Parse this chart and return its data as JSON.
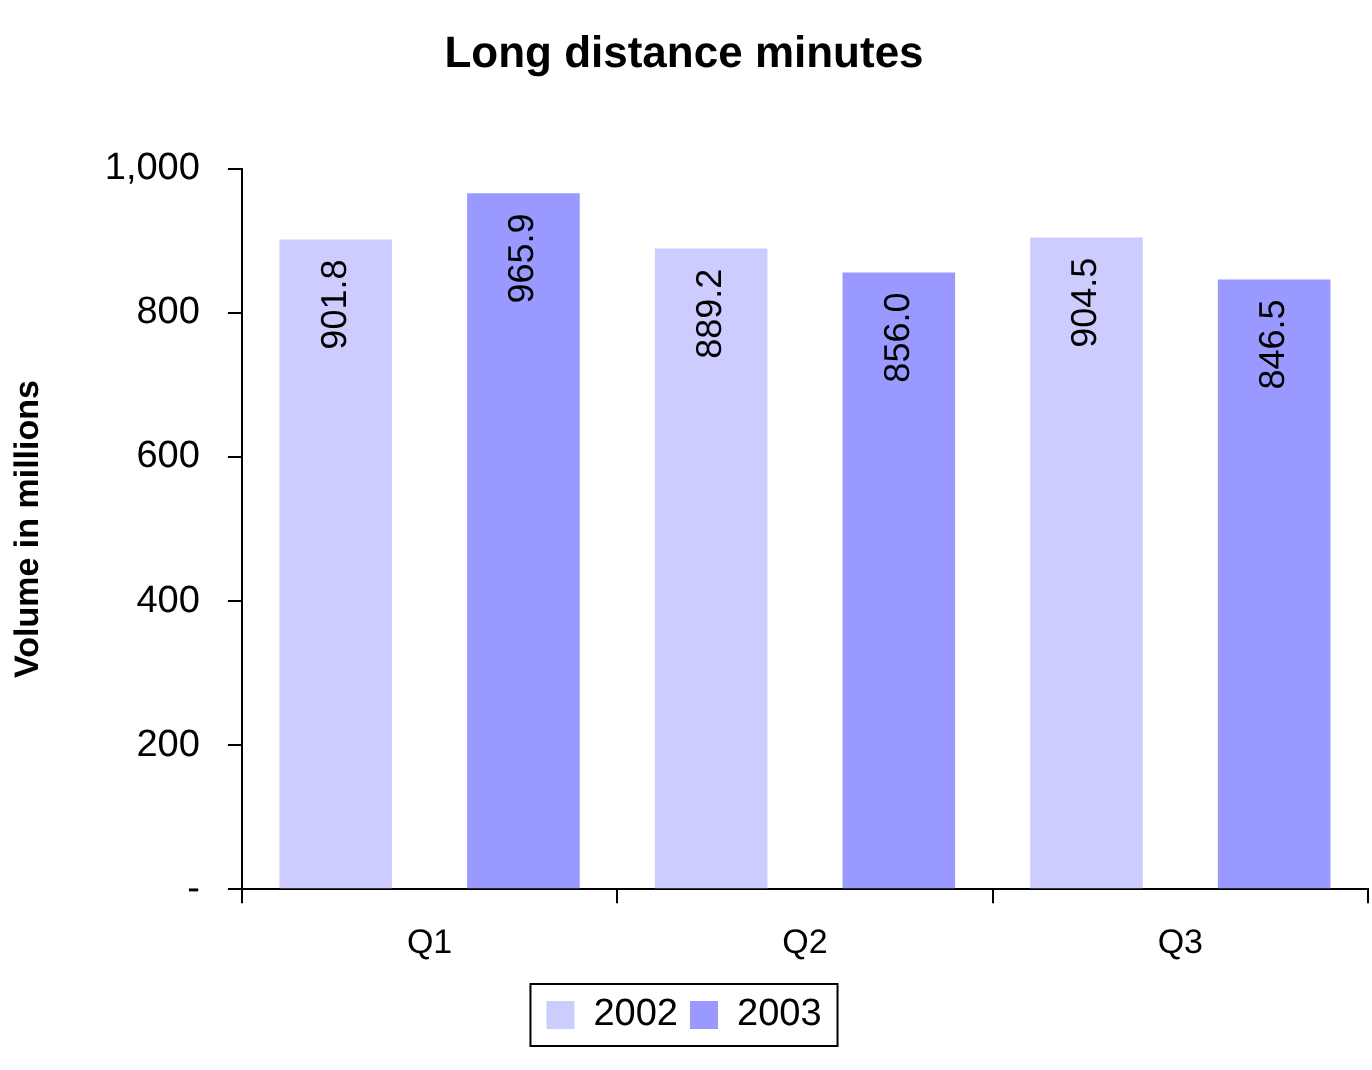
{
  "chart_data": {
    "type": "bar",
    "title": "Long distance minutes",
    "ylabel": "Volume in millions",
    "categories": [
      "Q1",
      "Q2",
      "Q3"
    ],
    "series": [
      {
        "name": "2002",
        "color": "#ccccff",
        "values": [
          901.8,
          889.2,
          904.5
        ],
        "value_labels": [
          "901.8",
          "889.2",
          "904.5"
        ]
      },
      {
        "name": "2003",
        "color": "#9999ff",
        "values": [
          965.9,
          856.0,
          846.5
        ],
        "value_labels": [
          "965.9",
          "856.0",
          "846.5"
        ]
      }
    ],
    "ylim": [
      0,
      1000
    ],
    "yticks": [
      {
        "value": 0,
        "label": "-"
      },
      200,
      400,
      600,
      800,
      {
        "value": 1000,
        "label": "1,000"
      }
    ],
    "grid": false,
    "legend": "bottom"
  }
}
